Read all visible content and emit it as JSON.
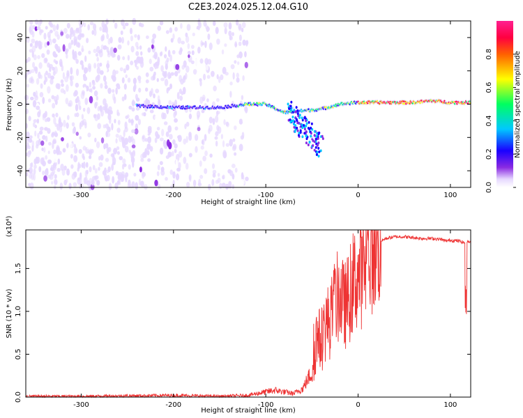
{
  "title": "C2E3.2024.025.12.04.G10",
  "colors": {
    "snr_line": "#ee3333",
    "spectrogram_low": "#dcc8ff",
    "spectrogram_mid": "#6a00ff",
    "colormap": [
      "#ffffff",
      "#e6d8ff",
      "#8a2be2",
      "#1a00ff",
      "#00c8ff",
      "#00ff60",
      "#ffff00",
      "#ff6000",
      "#ff0040",
      "#ff2090"
    ]
  },
  "chart_data": [
    {
      "type": "heatmap",
      "xlabel": "Height of straight line (km)",
      "ylabel": "Frequency (Hz)",
      "xlim": [
        -360,
        122
      ],
      "ylim": [
        -50,
        50
      ],
      "xticks": [
        -300,
        -200,
        -100,
        0,
        100
      ],
      "yticks": [
        -40,
        -20,
        0,
        20,
        40
      ],
      "colorbar": {
        "label": "Normalized spectral amplitude",
        "range": [
          0,
          1
        ],
        "ticks": [
          0.0,
          0.2,
          0.4,
          0.6,
          0.8
        ]
      },
      "ridge": {
        "description_points_x": [
          -240,
          -200,
          -150,
          -120,
          -100,
          -80,
          -60,
          -40,
          -20,
          0,
          20,
          40,
          60,
          80,
          100,
          122
        ],
        "description_points_y": [
          -1,
          -2,
          -2,
          0,
          0,
          -5,
          -4,
          -3,
          0,
          1,
          1,
          1,
          1,
          2,
          1,
          1
        ],
        "noise_region_x": [
          -360,
          -130
        ],
        "scattered_branch_x": [
          -75,
          -40
        ],
        "scattered_branch_y": [
          -5,
          -25
        ]
      }
    },
    {
      "type": "line",
      "xlabel": "Height of straight line (km)",
      "ylabel": "SNR (10 * v/v)",
      "y_multiplier": "(x10⁴)",
      "xlim": [
        -360,
        122
      ],
      "ylim": [
        0,
        1.95
      ],
      "xticks": [
        -300,
        -200,
        -100,
        0,
        100
      ],
      "yticks": [
        "0.0",
        "0.5",
        "1.0",
        "1.5"
      ],
      "series": [
        {
          "x": [
            -360,
            -300,
            -250,
            -200,
            -150,
            -120,
            -100,
            -90,
            -80,
            -70,
            -60,
            -50,
            -45,
            -40,
            -35,
            -30,
            -25,
            -20,
            -15,
            -10,
            -5,
            0,
            5,
            10,
            15,
            20,
            25,
            30,
            40,
            50,
            60,
            70,
            80,
            90,
            95,
            100,
            110,
            115,
            117,
            119,
            122
          ],
          "y": [
            0.01,
            0.01,
            0.015,
            0.02,
            0.01,
            0.02,
            0.06,
            0.08,
            0.06,
            0.04,
            0.1,
            0.3,
            0.7,
            0.65,
            0.85,
            0.9,
            1.1,
            1.2,
            1.05,
            1.15,
            1.35,
            1.4,
            1.45,
            1.6,
            1.7,
            1.78,
            1.82,
            1.85,
            1.87,
            1.87,
            1.86,
            1.85,
            1.85,
            1.84,
            1.82,
            1.83,
            1.82,
            1.8,
            1.8,
            1.82,
            1.8
          ]
        }
      ]
    }
  ]
}
